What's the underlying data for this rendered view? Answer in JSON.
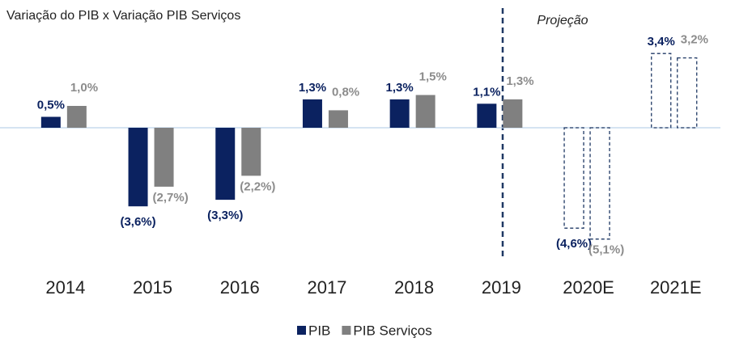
{
  "chart_data": {
    "type": "bar",
    "title": "Variação do PIB x Variação PIB Serviços",
    "annotation": "Projeção",
    "categories": [
      "2014",
      "2015",
      "2016",
      "2017",
      "2018",
      "2019",
      "2020E",
      "2021E"
    ],
    "projected": [
      false,
      false,
      false,
      false,
      false,
      false,
      true,
      true
    ],
    "series": [
      {
        "name": "PIB",
        "color": "#0b2260",
        "label_color": "#0b2260",
        "values": [
          0.5,
          -3.6,
          -3.3,
          1.3,
          1.3,
          1.1,
          -4.6,
          3.4
        ],
        "value_labels": [
          "0,5%",
          "(3,6%)",
          "(3,3%)",
          "1,3%",
          "1,3%",
          "1,1%",
          "(4,6%)",
          "3,4%"
        ]
      },
      {
        "name": "PIB Serviços",
        "color": "#808080",
        "label_color": "#8c8c8c",
        "values": [
          1.0,
          -2.7,
          -2.2,
          0.8,
          1.5,
          1.3,
          -5.1,
          3.2
        ],
        "value_labels": [
          "1,0%",
          "(2,7%)",
          "(2,2%)",
          "0,8%",
          "1,5%",
          "1,3%",
          "(5,1%)",
          "3,2%"
        ]
      }
    ],
    "ylim": [
      -6,
      4
    ]
  }
}
